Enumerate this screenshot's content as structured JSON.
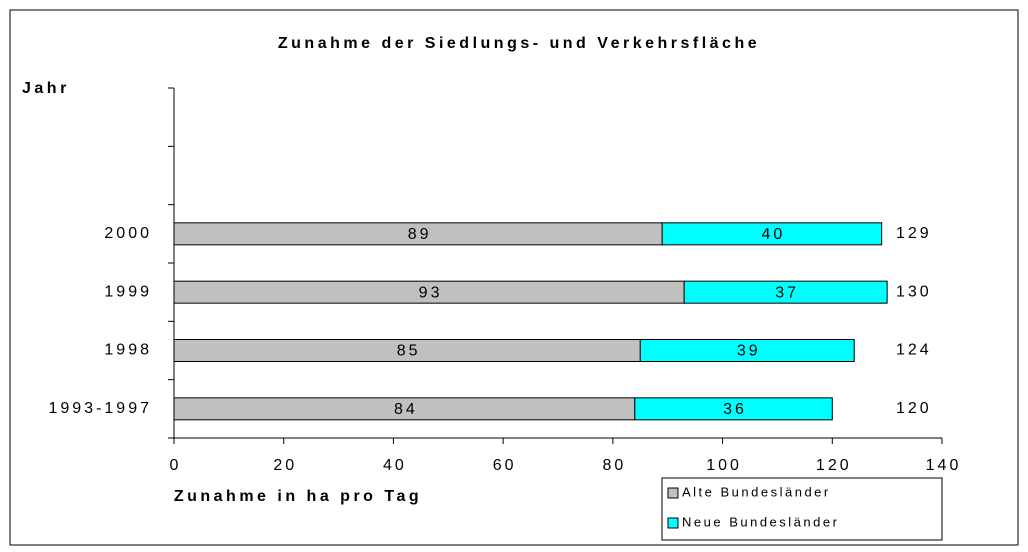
{
  "chart_data": {
    "type": "stacked_barh",
    "title": "Zunahme der Siedlungs- und Verkehrsfläche",
    "y_label": "Jahr",
    "x_label": "Zunahme in ha pro Tag",
    "categories": [
      null,
      null,
      "2000",
      "1999",
      "1998",
      "1993-1997"
    ],
    "series": [
      {
        "name": "Alte Bundesländer",
        "color": "#c0c0c0",
        "values": [
          null,
          null,
          89,
          93,
          85,
          84
        ]
      },
      {
        "name": "Neue Bundesländer",
        "color": "#00ffff",
        "values": [
          null,
          null,
          40,
          37,
          39,
          36
        ]
      }
    ],
    "totals": [
      null,
      null,
      129,
      130,
      124,
      120
    ],
    "xlim": [
      0,
      140
    ],
    "xticks": [
      0,
      20,
      40,
      60,
      80,
      100,
      120,
      140
    ],
    "grid": false,
    "legend": "bottom-right"
  }
}
